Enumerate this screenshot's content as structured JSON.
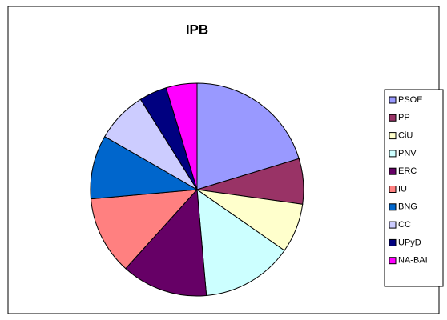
{
  "chart_data": {
    "type": "pie",
    "title": "IPB",
    "categories": [
      "PSOE",
      "PP",
      "CiU",
      "PNV",
      "ERC",
      "IU",
      "BNG",
      "CC",
      "UPyD",
      "NA-BAI"
    ],
    "values": [
      20.3,
      6.9,
      7.5,
      13.9,
      13.1,
      11.9,
      9.7,
      7.8,
      4.2,
      4.7
    ],
    "colors": [
      "#9999ff",
      "#993366",
      "#ffffcc",
      "#ccffff",
      "#660066",
      "#ff8080",
      "#0066cc",
      "#ccccff",
      "#000080",
      "#ff00ff"
    ],
    "legend": "right"
  }
}
